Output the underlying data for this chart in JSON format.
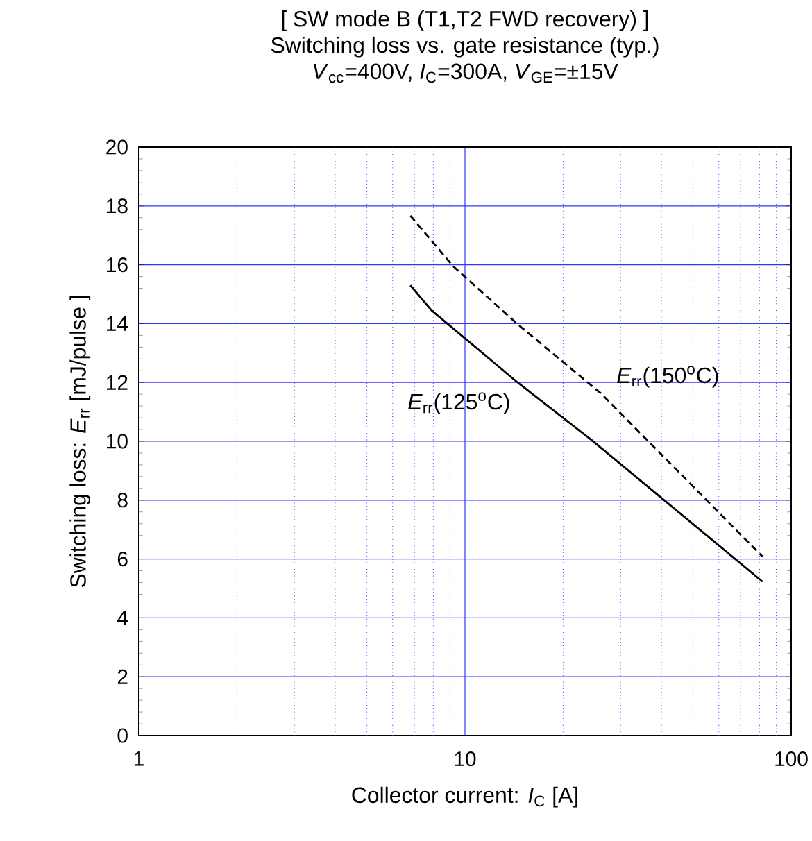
{
  "chart_data": {
    "type": "line",
    "title": "[ SW mode B (T1,T2 FWD recovery) ]",
    "subtitle": "Switching loss  vs.  gate resistance  (typ.)",
    "annotations": [
      "*V*$_{cc}$=400V, *I*$_{C}$=300A, *V*$_{GE}$=±15V"
    ],
    "xlabel": "Collector current: *I*$_{C}$ [A]",
    "ylabel": "Switching loss: *E*$_{rr}$ [mJ/pulse ]",
    "log": "x",
    "grid": true,
    "xlim": [
      1,
      100
    ],
    "xticks": [
      1,
      {
        "value": 2,
        "label": null
      },
      {
        "value": 3,
        "label": null
      },
      {
        "value": 4,
        "label": null
      },
      {
        "value": 5,
        "label": null
      },
      {
        "value": 6,
        "label": null
      },
      {
        "value": 7,
        "label": null
      },
      {
        "value": 8,
        "label": null
      },
      {
        "value": 9,
        "label": null
      },
      10,
      {
        "value": 20,
        "label": null
      },
      {
        "value": 30,
        "label": null
      },
      {
        "value": 40,
        "label": null
      },
      {
        "value": 50,
        "label": null
      },
      {
        "value": 60,
        "label": null
      },
      {
        "value": 70,
        "label": null
      },
      {
        "value": 80,
        "label": null
      },
      {
        "value": 90,
        "label": null
      },
      100
    ],
    "ylim": [
      0,
      20
    ],
    "yticks": [
      0,
      2,
      4,
      6,
      8,
      10,
      12,
      14,
      16,
      18,
      20
    ],
    "series": [
      {
        "name": "*E*$_{rr}$(125$^{o}$C)",
        "color": "#000000",
        "line_style": "solid",
        "x": [
          6.8,
          7.9,
          10,
          14.5,
          24.4,
          39.8,
          81.7
        ],
        "values": [
          15.3,
          14.45,
          13.5,
          12.0,
          10.05,
          8.1,
          5.23
        ]
      },
      {
        "name": "*E*$_{rr}$(150$^{o}$C)",
        "color": "#000000",
        "line_style": "dashed",
        "x": [
          6.8,
          9.2,
          14.5,
          26.1,
          81.7
        ],
        "values": [
          17.67,
          15.95,
          13.98,
          11.63,
          6.08
        ]
      }
    ]
  }
}
